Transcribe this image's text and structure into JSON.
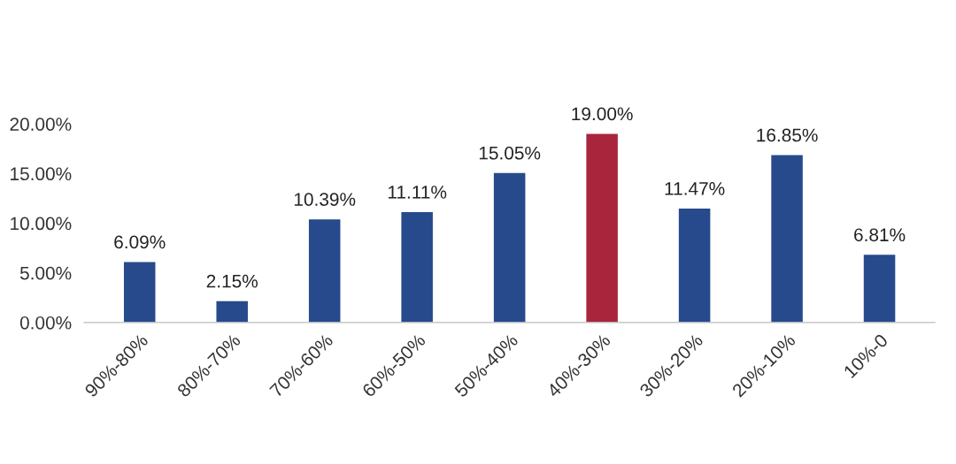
{
  "chart_data": {
    "type": "bar",
    "categories": [
      "90%-80%",
      "80%-70%",
      "70%-60%",
      "60%-50%",
      "50%-40%",
      "40%-30%",
      "30%-20%",
      "20%-10%",
      "10%-0"
    ],
    "values": [
      6.09,
      2.15,
      10.39,
      11.11,
      15.05,
      19.0,
      11.47,
      16.85,
      6.81
    ],
    "value_labels": [
      "6.09%",
      "2.15%",
      "10.39%",
      "11.11%",
      "15.05%",
      "19.00%",
      "11.47%",
      "16.85%",
      "6.81%"
    ],
    "colors": [
      "#264a8c",
      "#264a8c",
      "#264a8c",
      "#264a8c",
      "#264a8c",
      "#a8253c",
      "#264a8c",
      "#264a8c",
      "#264a8c"
    ],
    "ylim": [
      0,
      20
    ],
    "yticks": [
      {
        "value": 0,
        "label": "0.00%"
      },
      {
        "value": 5,
        "label": "5.00%"
      },
      {
        "value": 10,
        "label": "10.00%"
      },
      {
        "value": 15,
        "label": "15.00%"
      },
      {
        "value": 20,
        "label": "20.00%"
      }
    ],
    "grid": false
  }
}
